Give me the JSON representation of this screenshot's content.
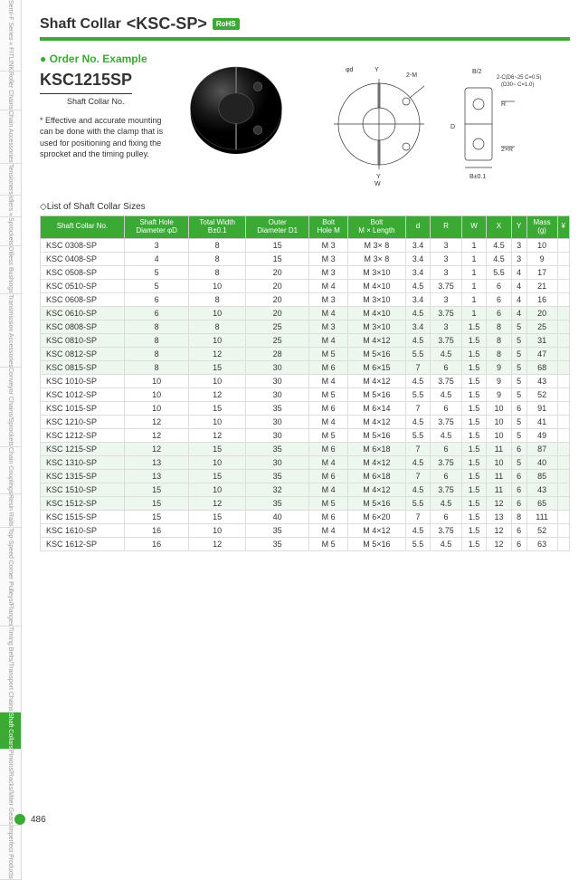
{
  "sidebar": [
    "Semi-F Series\n« FITLINK",
    "Roller Chains",
    "Chain Accessories",
    "Tensioners",
    "Idlers «",
    "Sprockets",
    "Oilless Bushings",
    "Transmission Accessories",
    "Conveyor Chains/Sprockets",
    "Chain Couplings",
    "Resin Rails",
    "Top-Speed Corner Pulleys/Flanges",
    "Timing Belts/Transport Chains",
    "Shaft Collars",
    "Pinions/Racks/Miter Gears",
    "Imperfect Products"
  ],
  "sidebar_active": 13,
  "title": {
    "text": "Shaft Collar",
    "model": "<KSC-SP>",
    "rohs": "RoHS"
  },
  "order": {
    "title": "Order No. Example",
    "number": "KSC1215SP",
    "sub": "Shaft Collar No."
  },
  "note": "* Effective and accurate mounting can be done with the clamp that is used for positioning and fixing the sprocket and the timing pulley.",
  "drawing_labels": {
    "phi_d": "φd",
    "y": "Y",
    "two_m": "2-M",
    "b2": "B/2",
    "chamfer": "2-C(D6~25 C=0.5)\n(D30~ C=1.0)",
    "r": "R",
    "d": "D",
    "ten_neg": "10⁻",
    "two_x": "2×",
    "w": "W",
    "two_r": "2×R",
    "b_tol": "B±0.1"
  },
  "list_title": "List of Shaft Collar Sizes",
  "table": {
    "headers": [
      "Shaft Collar No.",
      "Shaft Hole\nDiameter φD",
      "Total Width\nB±0.1",
      "Outer\nDiameter D1",
      "Bolt\nHole M",
      "Bolt\nM × Length",
      "d",
      "R",
      "W",
      "X",
      "Y",
      "Mass\n(g)",
      "¥"
    ],
    "groups": [
      {
        "band": false,
        "rows": [
          [
            "KSC 0308-SP",
            "3",
            "8",
            "15",
            "M 3",
            "M 3× 8",
            "3.4",
            "3",
            "1",
            "4.5",
            "3",
            "10",
            ""
          ],
          [
            "KSC 0408-SP",
            "4",
            "8",
            "15",
            "M 3",
            "M 3× 8",
            "3.4",
            "3",
            "1",
            "4.5",
            "3",
            "9",
            ""
          ],
          [
            "KSC 0508-SP",
            "5",
            "8",
            "20",
            "M 3",
            "M 3×10",
            "3.4",
            "3",
            "1",
            "5.5",
            "4",
            "17",
            ""
          ],
          [
            "KSC 0510-SP",
            "5",
            "10",
            "20",
            "M 4",
            "M 4×10",
            "4.5",
            "3.75",
            "1",
            "6",
            "4",
            "21",
            ""
          ],
          [
            "KSC 0608-SP",
            "6",
            "8",
            "20",
            "M 3",
            "M 3×10",
            "3.4",
            "3",
            "1",
            "6",
            "4",
            "16",
            ""
          ]
        ]
      },
      {
        "band": true,
        "rows": [
          [
            "KSC 0610-SP",
            "6",
            "10",
            "20",
            "M 4",
            "M 4×10",
            "4.5",
            "3.75",
            "1",
            "6",
            "4",
            "20",
            ""
          ],
          [
            "KSC 0808-SP",
            "8",
            "8",
            "25",
            "M 3",
            "M 3×10",
            "3.4",
            "3",
            "1.5",
            "8",
            "5",
            "25",
            ""
          ],
          [
            "KSC 0810-SP",
            "8",
            "10",
            "25",
            "M 4",
            "M 4×12",
            "4.5",
            "3.75",
            "1.5",
            "8",
            "5",
            "31",
            ""
          ],
          [
            "KSC 0812-SP",
            "8",
            "12",
            "28",
            "M 5",
            "M 5×16",
            "5.5",
            "4.5",
            "1.5",
            "8",
            "5",
            "47",
            ""
          ],
          [
            "KSC 0815-SP",
            "8",
            "15",
            "30",
            "M 6",
            "M 6×15",
            "7",
            "6",
            "1.5",
            "9",
            "5",
            "68",
            ""
          ]
        ]
      },
      {
        "band": false,
        "rows": [
          [
            "KSC 1010-SP",
            "10",
            "10",
            "30",
            "M 4",
            "M 4×12",
            "4.5",
            "3.75",
            "1.5",
            "9",
            "5",
            "43",
            ""
          ],
          [
            "KSC 1012-SP",
            "10",
            "12",
            "30",
            "M 5",
            "M 5×16",
            "5.5",
            "4.5",
            "1.5",
            "9",
            "5",
            "52",
            ""
          ],
          [
            "KSC 1015-SP",
            "10",
            "15",
            "35",
            "M 6",
            "M 6×14",
            "7",
            "6",
            "1.5",
            "10",
            "6",
            "91",
            ""
          ],
          [
            "KSC 1210-SP",
            "12",
            "10",
            "30",
            "M 4",
            "M 4×12",
            "4.5",
            "3.75",
            "1.5",
            "10",
            "5",
            "41",
            ""
          ],
          [
            "KSC 1212-SP",
            "12",
            "12",
            "30",
            "M 5",
            "M 5×16",
            "5.5",
            "4.5",
            "1.5",
            "10",
            "5",
            "49",
            ""
          ]
        ]
      },
      {
        "band": true,
        "rows": [
          [
            "KSC 1215-SP",
            "12",
            "15",
            "35",
            "M 6",
            "M 6×18",
            "7",
            "6",
            "1.5",
            "11",
            "6",
            "87",
            ""
          ],
          [
            "KSC 1310-SP",
            "13",
            "10",
            "30",
            "M 4",
            "M 4×12",
            "4.5",
            "3.75",
            "1.5",
            "10",
            "5",
            "40",
            ""
          ],
          [
            "KSC 1315-SP",
            "13",
            "15",
            "35",
            "M 6",
            "M 6×18",
            "7",
            "6",
            "1.5",
            "11",
            "6",
            "85",
            ""
          ],
          [
            "KSC 1510-SP",
            "15",
            "10",
            "32",
            "M 4",
            "M 4×12",
            "4.5",
            "3.75",
            "1.5",
            "11",
            "6",
            "43",
            ""
          ],
          [
            "KSC 1512-SP",
            "15",
            "12",
            "35",
            "M 5",
            "M 5×16",
            "5.5",
            "4.5",
            "1.5",
            "12",
            "6",
            "65",
            ""
          ]
        ]
      },
      {
        "band": false,
        "rows": [
          [
            "KSC 1515-SP",
            "15",
            "15",
            "40",
            "M 6",
            "M 6×20",
            "7",
            "6",
            "1.5",
            "13",
            "8",
            "111",
            ""
          ],
          [
            "KSC 1610-SP",
            "16",
            "10",
            "35",
            "M 4",
            "M 4×12",
            "4.5",
            "3.75",
            "1.5",
            "12",
            "6",
            "52",
            ""
          ],
          [
            "KSC 1612-SP",
            "16",
            "12",
            "35",
            "M 5",
            "M 5×16",
            "5.5",
            "4.5",
            "1.5",
            "12",
            "6",
            "63",
            ""
          ]
        ]
      }
    ]
  },
  "page_number": "486",
  "colors": {
    "green": "#3aaa35",
    "band": "#eef7ed",
    "text": "#333"
  }
}
